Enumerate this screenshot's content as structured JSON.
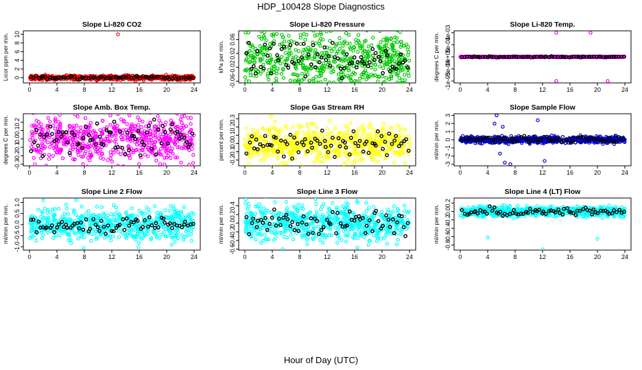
{
  "title": "HDP_100428  Slope Diagnostics",
  "xlabel": "Hour of Day (UTC)",
  "chart_data": [
    {
      "type": "scatter",
      "title": "Slope Li-820 CO2",
      "ylabel": "Licor ppm per min.",
      "color": "#ff0000",
      "xlim": [
        0,
        24
      ],
      "xticks": [
        0,
        4,
        8,
        12,
        16,
        20,
        24
      ],
      "ylim": [
        -1.2,
        10.8
      ],
      "yticks": [
        0,
        2,
        4,
        6,
        8,
        10
      ],
      "ytick_labels": [
        "0",
        "2",
        "4",
        "6",
        "8",
        "10"
      ],
      "spread": 0.25,
      "black_spread": 0.2,
      "outliers": [
        [
          12.9,
          10
        ]
      ]
    },
    {
      "type": "scatter",
      "title": "Slope Li-820 Pressure",
      "ylabel": "kPa per min.",
      "color": "#00c800",
      "xlim": [
        0,
        24
      ],
      "xticks": [
        0,
        4,
        8,
        12,
        16,
        20,
        24
      ],
      "ylim": [
        -0.065,
        0.085
      ],
      "yticks": [
        -0.06,
        -0.02,
        0.02,
        0.06
      ],
      "ytick_labels": [
        "-0.06",
        "-0.02",
        "0.02",
        "0.06"
      ],
      "spread": 0.045,
      "black_spread": 0.025,
      "outliers": [
        [
          0.1,
          0.08
        ],
        [
          0.2,
          -0.06
        ],
        [
          7.8,
          -0.055
        ]
      ]
    },
    {
      "type": "scatter",
      "title": "Slope Li-820 Temp.",
      "ylabel": "degrees C per min.",
      "color": "#ff00ff",
      "xlim": [
        0,
        24
      ],
      "xticks": [
        0,
        4,
        8,
        12,
        16,
        20,
        24
      ],
      "ylim": [
        -0.00108,
        0.00108
      ],
      "yticks": [
        -0.001,
        -0.0005,
        0,
        0.0005,
        0.001
      ],
      "ytick_labels": [
        "-1e-03",
        "-5e-04",
        "0e+00",
        "5e-04",
        "1e-03"
      ],
      "spread": 1e-05,
      "black_spread": 1e-05,
      "outliers": [
        [
          14,
          0.001
        ],
        [
          14,
          -0.001
        ],
        [
          19,
          0.001
        ],
        [
          21.5,
          -0.001
        ]
      ]
    },
    {
      "type": "scatter",
      "title": "Slope Amb. Box Temp.",
      "ylabel": "degrees C per min.",
      "color": "#ff00ff",
      "xlim": [
        0,
        24
      ],
      "xticks": [
        0,
        4,
        8,
        12,
        16,
        20,
        24
      ],
      "ylim": [
        -0.32,
        0.3
      ],
      "yticks": [
        -0.3,
        -0.2,
        -0.1,
        0,
        0.1,
        0.2
      ],
      "ytick_labels": [
        "-0.3",
        "-0.2",
        "-0.1",
        "0.0",
        "0.1",
        "0.2"
      ],
      "spread": 0.13,
      "black_spread": 0.1,
      "outliers": [
        [
          7.8,
          -0.3
        ],
        [
          11.8,
          0.28
        ]
      ]
    },
    {
      "type": "scatter",
      "title": "Slope Gas Stream RH",
      "ylabel": "percent per min.",
      "color": "#ffff00",
      "xlim": [
        0,
        24
      ],
      "xticks": [
        0,
        4,
        8,
        12,
        16,
        20,
        24
      ],
      "ylim": [
        -0.27,
        0.36
      ],
      "yticks": [
        -0.2,
        -0.1,
        0,
        0.1,
        0.2,
        0.3
      ],
      "ytick_labels": [
        "-0.2",
        "-0.1",
        "0.0",
        "0.1",
        "0.2",
        "0.3"
      ],
      "spread": 0.1,
      "black_spread": 0.07,
      "outliers": [
        [
          3.8,
          0.33
        ]
      ]
    },
    {
      "type": "scatter",
      "title": "Slope Sample Flow",
      "ylabel": "ml/min per min.",
      "color": "#0000cc",
      "xlim": [
        0,
        24
      ],
      "xticks": [
        0,
        4,
        8,
        12,
        16,
        20,
        24
      ],
      "ylim": [
        -3.2,
        3.2
      ],
      "yticks": [
        -3,
        -2,
        -1,
        0,
        1,
        2,
        3
      ],
      "ytick_labels": [
        "-3",
        "-2",
        "-1",
        "0",
        "1",
        "2",
        "3"
      ],
      "spread": 0.2,
      "black_spread": 0.18,
      "outliers": [
        [
          5.3,
          3
        ],
        [
          5,
          2
        ],
        [
          6.2,
          1.6
        ],
        [
          11.3,
          2.4
        ],
        [
          6.5,
          -2.8
        ],
        [
          7.3,
          -3
        ],
        [
          12.3,
          -2.6
        ],
        [
          5.8,
          -1.7
        ]
      ]
    },
    {
      "type": "scatter",
      "title": "Slope Line 2 Flow",
      "ylabel": "ml/min per min.",
      "color": "#00ffff",
      "xlim": [
        0,
        24
      ],
      "xticks": [
        0,
        4,
        8,
        12,
        16,
        20,
        24
      ],
      "ylim": [
        -1.15,
        1.2
      ],
      "yticks": [
        -1,
        -0.5,
        0,
        0.5,
        1
      ],
      "ytick_labels": [
        "-1.0",
        "-0.5",
        "0.0",
        "0.5",
        "1.0"
      ],
      "spread": 0.35,
      "black_spread": 0.18,
      "outliers": [
        [
          2,
          1.1
        ],
        [
          6.8,
          1.1
        ],
        [
          7.9,
          -1.05
        ],
        [
          5.7,
          -0.7
        ]
      ]
    },
    {
      "type": "scatter",
      "title": "Slope Line 3 Flow",
      "ylabel": "ml/min per min.",
      "color": "#00ffff",
      "xlim": [
        0,
        24
      ],
      "xticks": [
        0,
        4,
        8,
        12,
        16,
        20,
        24
      ],
      "ylim": [
        -0.62,
        0.58
      ],
      "yticks": [
        -0.6,
        -0.4,
        -0.2,
        0,
        0.2,
        0.4
      ],
      "ytick_labels": [
        "-0.6",
        "-0.4",
        "-0.2",
        "0.0",
        "0.2",
        "0.4"
      ],
      "spread": 0.2,
      "black_spread": 0.15,
      "outliers": [
        [
          10.3,
          0.55
        ],
        [
          5.5,
          -0.6
        ],
        [
          0.1,
          0.55
        ]
      ]
    },
    {
      "type": "scatter",
      "title": "Slope Line 4 (LT) Flow",
      "ylabel": "ml/min per min.",
      "color": "#00ffff",
      "xlim": [
        0,
        24
      ],
      "xticks": [
        0,
        4,
        8,
        12,
        16,
        20,
        24
      ],
      "ylim": [
        -0.92,
        0.32
      ],
      "yticks": [
        -0.8,
        -0.6,
        -0.4,
        -0.2,
        0,
        0.2
      ],
      "ytick_labels": [
        "-0.8",
        "-0.6",
        "-0.4",
        "-0.2",
        "0.0",
        "0.2"
      ],
      "spread": 0.06,
      "black_spread": 0.05,
      "outliers": [
        [
          4,
          -0.62
        ],
        [
          12,
          -0.9
        ],
        [
          20,
          -0.65
        ]
      ]
    }
  ]
}
